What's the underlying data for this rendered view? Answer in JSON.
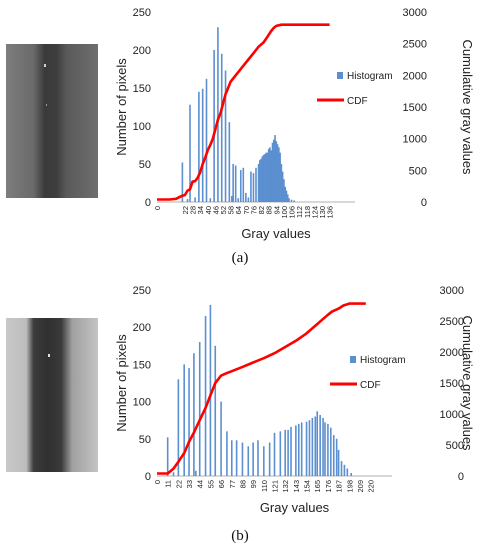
{
  "colors": {
    "histogram": "#5b8fd0",
    "cdf": "#ff0000"
  },
  "figure": {
    "captions": [
      "(a)",
      "(b)"
    ]
  },
  "chart_data": [
    {
      "type": "bar",
      "title": "",
      "xlabel": "Gray values",
      "ylabel": "Number of pixels",
      "y2label": "Cumulative gray values",
      "ylim": [
        0,
        250
      ],
      "y2lim": [
        0,
        3000
      ],
      "yticks": [
        "0",
        "50",
        "100",
        "150",
        "200",
        "250"
      ],
      "y2ticks": [
        "0",
        "500",
        "1000",
        "1500",
        "2000",
        "2500",
        "3000"
      ],
      "xlim": [
        0,
        156
      ],
      "xticks": [
        "0",
        "22",
        "28",
        "34",
        "40",
        "46",
        "52",
        "58",
        "64",
        "70",
        "76",
        "82",
        "88",
        "94",
        "100",
        "106",
        "112",
        "118",
        "124",
        "130",
        "136"
      ],
      "legend": {
        "position": "right",
        "entries": [
          "Histogram",
          "CDF"
        ]
      },
      "series": [
        {
          "name": "Histogram",
          "kind": "bar",
          "x": [
            20,
            24,
            26,
            30,
            33,
            36,
            39,
            42,
            45,
            48,
            51,
            54,
            57,
            59,
            60,
            62,
            64,
            66,
            68,
            70,
            72,
            74,
            76,
            78,
            80,
            81,
            82,
            83,
            84,
            85,
            86,
            87,
            88,
            89,
            90,
            91,
            92,
            93,
            94,
            95,
            96,
            97,
            98,
            99,
            100,
            101,
            102,
            103,
            104,
            106,
            108
          ],
          "values": [
            52,
            4,
            128,
            6,
            145,
            149,
            162,
            5,
            200,
            230,
            195,
            173,
            105,
            8,
            50,
            48,
            5,
            42,
            45,
            12,
            6,
            40,
            38,
            45,
            50,
            55,
            57,
            60,
            62,
            63,
            65,
            65,
            70,
            72,
            68,
            78,
            82,
            88,
            80,
            76,
            72,
            65,
            50,
            40,
            30,
            20,
            15,
            10,
            5,
            3,
            2
          ]
        },
        {
          "name": "CDF",
          "kind": "line",
          "axis": "right",
          "x": [
            0,
            10,
            15,
            18,
            20,
            22,
            24,
            26,
            28,
            30,
            32,
            34,
            36,
            38,
            40,
            42,
            44,
            46,
            48,
            50,
            52,
            54,
            56,
            58,
            60,
            64,
            68,
            72,
            76,
            80,
            84,
            86,
            88,
            90,
            92,
            94,
            96,
            98,
            100,
            102,
            104,
            106,
            108,
            112,
            120,
            130,
            136
          ],
          "y": [
            40,
            40,
            50,
            80,
            100,
            110,
            180,
            200,
            320,
            330,
            380,
            470,
            600,
            700,
            820,
            900,
            1000,
            1150,
            1300,
            1400,
            1550,
            1700,
            1800,
            1900,
            1950,
            2050,
            2150,
            2250,
            2350,
            2450,
            2520,
            2580,
            2640,
            2700,
            2750,
            2780,
            2790,
            2800,
            2800,
            2800,
            2800,
            2800,
            2800,
            2800,
            2800,
            2800,
            2800
          ]
        }
      ]
    },
    {
      "type": "bar",
      "title": "",
      "xlabel": "Gray values",
      "ylabel": "Number of pixels",
      "y2label": "Cumulative gray values",
      "ylim": [
        0,
        250
      ],
      "y2lim": [
        0,
        3000
      ],
      "yticks": [
        "0",
        "50",
        "100",
        "150",
        "200",
        "250"
      ],
      "y2ticks": [
        "0",
        "500",
        "1000",
        "1500",
        "2000",
        "2500",
        "3000"
      ],
      "xlim": [
        0,
        242
      ],
      "xticks": [
        "0",
        "11",
        "22",
        "33",
        "44",
        "55",
        "66",
        "77",
        "88",
        "99",
        "110",
        "121",
        "132",
        "143",
        "154",
        "165",
        "176",
        "187",
        "198",
        "209",
        "220"
      ],
      "legend": {
        "position": "right",
        "entries": [
          "Histogram",
          "CDF"
        ]
      },
      "series": [
        {
          "name": "Histogram",
          "kind": "bar",
          "x": [
            11,
            17,
            22,
            28,
            33,
            38,
            40,
            44,
            50,
            55,
            60,
            66,
            72,
            77,
            82,
            88,
            94,
            99,
            104,
            110,
            116,
            121,
            127,
            132,
            135,
            138,
            143,
            146,
            149,
            154,
            157,
            160,
            163,
            165,
            168,
            171,
            173,
            176,
            179,
            182,
            185,
            187,
            190,
            193,
            196,
            200
          ],
          "values": [
            52,
            5,
            130,
            150,
            145,
            165,
            7,
            180,
            215,
            230,
            175,
            100,
            60,
            48,
            48,
            45,
            40,
            45,
            48,
            40,
            45,
            58,
            60,
            62,
            62,
            66,
            68,
            70,
            72,
            73,
            75,
            78,
            80,
            87,
            82,
            78,
            72,
            70,
            65,
            55,
            50,
            35,
            20,
            15,
            10,
            4
          ],
          "note": ""
        },
        {
          "name": "CDF",
          "kind": "line",
          "axis": "right",
          "x": [
            0,
            11,
            17,
            22,
            28,
            33,
            38,
            44,
            50,
            55,
            60,
            66,
            72,
            77,
            88,
            99,
            110,
            121,
            132,
            143,
            154,
            165,
            170,
            176,
            180,
            187,
            192,
            198,
            209,
            215
          ],
          "y": [
            40,
            40,
            120,
            230,
            370,
            550,
            700,
            900,
            1100,
            1300,
            1500,
            1620,
            1660,
            1690,
            1760,
            1830,
            1900,
            1980,
            2080,
            2180,
            2300,
            2450,
            2520,
            2600,
            2650,
            2700,
            2750,
            2780,
            2780,
            2780
          ]
        }
      ]
    }
  ]
}
